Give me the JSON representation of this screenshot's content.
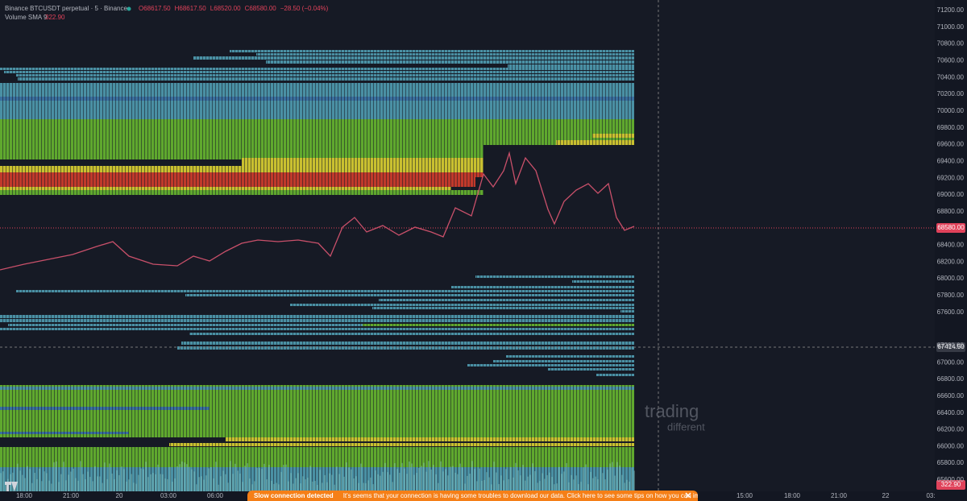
{
  "header": {
    "symbol": "Binance BTCUSDT perpetual · 5 · Binance",
    "ohlc": [
      "O68617.50",
      "H68617.50",
      "L68520.00",
      "C68580.00",
      "−28.50 (−0.04%)"
    ],
    "indicator": "Volume SMA 9",
    "indicator_value": "322.90"
  },
  "price_axis": {
    "labels": [
      "71200.00",
      "71000.00",
      "70800.00",
      "70600.00",
      "70400.00",
      "70200.00",
      "70000.00",
      "69800.00",
      "69600.00",
      "69400.00",
      "69200.00",
      "69000.00",
      "68800.00",
      null,
      "68400.00",
      "68200.00",
      "68000.00",
      "67800.00",
      "67600.00",
      null,
      "67200.00",
      "67000.00",
      "66800.00",
      "66600.00",
      "66400.00",
      "66200.00",
      "66000.00",
      "65800.00",
      "65600.00"
    ],
    "last_price": "68580.00",
    "crosshair_price": "67414.50",
    "volume_value": "322.90"
  },
  "time_axis": {
    "labels": [
      "18:00",
      "21:00",
      "20",
      "03:00",
      "06:00",
      "15:00",
      "18:00",
      "21:00",
      "22",
      "03:"
    ]
  },
  "watermark": {
    "line1": "trading",
    "line2": "different"
  },
  "toast": {
    "title": "Slow connection detected",
    "message": "It's seems that your connection is having some troubles to download our data. Click here to see some tips on how you can improve this"
  }
}
